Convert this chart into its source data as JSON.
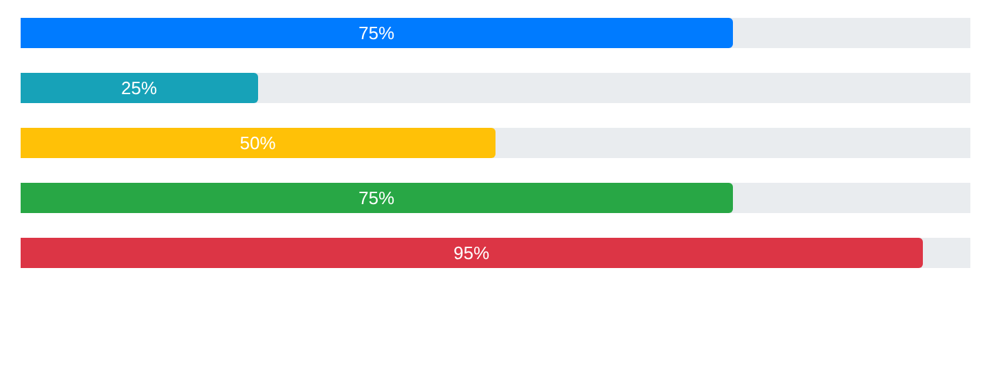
{
  "chart_data": {
    "type": "bar",
    "orientation": "horizontal",
    "categories": [
      null,
      null,
      null,
      null,
      null
    ],
    "values": [
      75,
      25,
      50,
      75,
      95
    ],
    "colors": [
      "#007bff",
      "#17a2b8",
      "#ffc107",
      "#28a745",
      "#dc3545"
    ],
    "value_labels": [
      "75%",
      "25%",
      "50%",
      "75%",
      "95%"
    ],
    "xlim": [
      0,
      100
    ],
    "tick_labels": false,
    "grid": false,
    "legend": false
  }
}
